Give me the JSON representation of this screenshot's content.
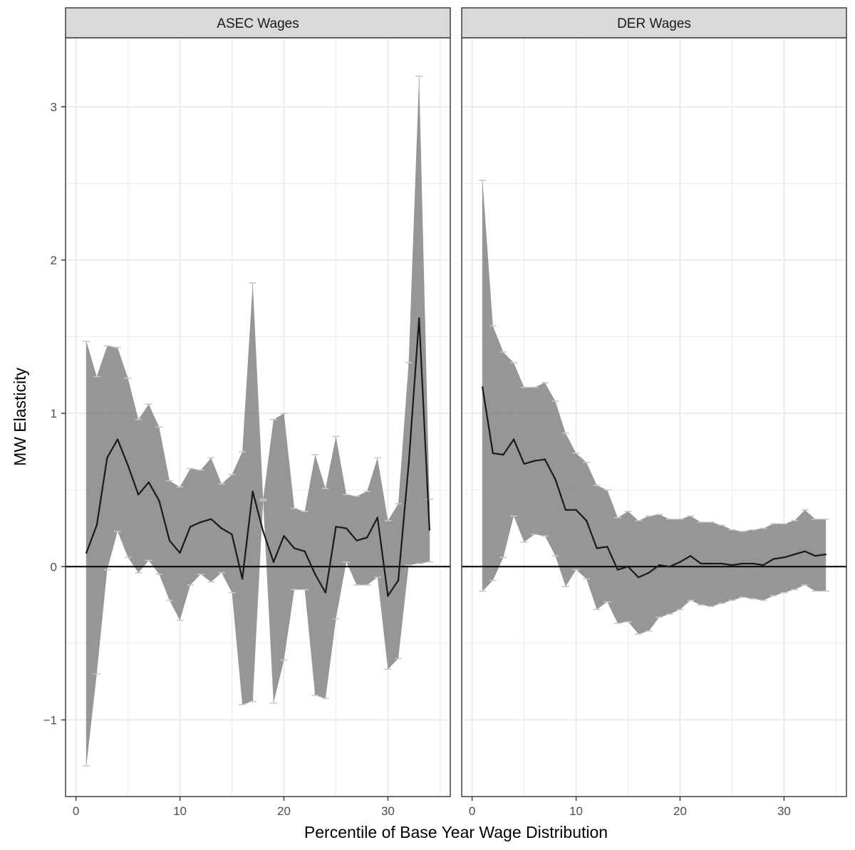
{
  "chart_data": {
    "type": "line",
    "facet_titles": [
      "ASEC Wages",
      "DER Wages"
    ],
    "xlabel": "Percentile of Base Year Wage Distribution",
    "ylabel": "MW Elasticity",
    "xlim": [
      -1,
      36
    ],
    "ylim": [
      -1.5,
      3.45
    ],
    "x_ticks": [
      0,
      10,
      20,
      30
    ],
    "y_ticks": [
      -1,
      0,
      1,
      2,
      3
    ],
    "reference_line": 0,
    "grid": true,
    "colors": {
      "line": "#1a1a1a",
      "band": "#6e6e6e",
      "strip": "#d9d9d9",
      "grid": "#ebebeb",
      "errorbar": "#c8c8c8"
    },
    "panels": [
      {
        "title": "ASEC Wages",
        "x": [
          1,
          2,
          3,
          4,
          5,
          6,
          7,
          8,
          9,
          10,
          11,
          12,
          13,
          14,
          15,
          16,
          17,
          18,
          19,
          20,
          21,
          22,
          23,
          24,
          25,
          26,
          27,
          28,
          29,
          30,
          31,
          32,
          33,
          34
        ],
        "estimate": [
          0.09,
          0.27,
          0.71,
          0.83,
          0.66,
          0.47,
          0.55,
          0.43,
          0.17,
          0.09,
          0.26,
          0.29,
          0.31,
          0.25,
          0.21,
          -0.08,
          0.49,
          0.23,
          0.03,
          0.2,
          0.12,
          0.1,
          -0.05,
          -0.17,
          0.26,
          0.25,
          0.17,
          0.19,
          0.32,
          -0.19,
          -0.09,
          0.67,
          1.62,
          0.24
        ],
        "lower": [
          -1.3,
          -0.7,
          -0.02,
          0.23,
          0.06,
          -0.04,
          0.04,
          -0.05,
          -0.22,
          -0.35,
          -0.12,
          -0.05,
          -0.1,
          -0.04,
          -0.17,
          -0.9,
          -0.88,
          0.43,
          -0.89,
          -0.61,
          -0.15,
          -0.15,
          -0.84,
          -0.86,
          -0.34,
          0.03,
          -0.12,
          -0.12,
          -0.07,
          -0.67,
          -0.6,
          0.01,
          0.02,
          0.03
        ],
        "upper": [
          1.47,
          1.24,
          1.44,
          1.43,
          1.23,
          0.96,
          1.06,
          0.91,
          0.56,
          0.52,
          0.64,
          0.63,
          0.71,
          0.54,
          0.6,
          0.75,
          1.85,
          0.44,
          0.96,
          1.0,
          0.38,
          0.36,
          0.73,
          0.51,
          0.85,
          0.47,
          0.46,
          0.49,
          0.71,
          0.3,
          0.41,
          1.33,
          3.2,
          0.44
        ]
      },
      {
        "title": "DER Wages",
        "x": [
          1,
          2,
          3,
          4,
          5,
          6,
          7,
          8,
          9,
          10,
          11,
          12,
          13,
          14,
          15,
          16,
          17,
          18,
          19,
          20,
          21,
          22,
          23,
          24,
          25,
          26,
          27,
          28,
          29,
          30,
          31,
          32,
          33,
          34
        ],
        "estimate": [
          1.17,
          0.74,
          0.73,
          0.83,
          0.67,
          0.69,
          0.7,
          0.57,
          0.37,
          0.37,
          0.3,
          0.12,
          0.13,
          -0.02,
          0.0,
          -0.07,
          -0.04,
          0.01,
          0.0,
          0.03,
          0.07,
          0.02,
          0.02,
          0.02,
          0.01,
          0.02,
          0.02,
          0.01,
          0.05,
          0.06,
          0.08,
          0.1,
          0.07,
          0.08
        ],
        "lower": [
          -0.16,
          -0.09,
          0.06,
          0.33,
          0.16,
          0.21,
          0.2,
          0.07,
          -0.13,
          -0.02,
          -0.08,
          -0.28,
          -0.23,
          -0.37,
          -0.36,
          -0.44,
          -0.42,
          -0.33,
          -0.31,
          -0.28,
          -0.22,
          -0.25,
          -0.26,
          -0.24,
          -0.22,
          -0.2,
          -0.21,
          -0.22,
          -0.19,
          -0.17,
          -0.15,
          -0.12,
          -0.16,
          -0.16
        ],
        "upper": [
          2.52,
          1.57,
          1.4,
          1.33,
          1.17,
          1.17,
          1.2,
          1.08,
          0.87,
          0.74,
          0.68,
          0.53,
          0.5,
          0.32,
          0.36,
          0.3,
          0.33,
          0.34,
          0.31,
          0.31,
          0.33,
          0.29,
          0.29,
          0.27,
          0.24,
          0.23,
          0.24,
          0.25,
          0.28,
          0.28,
          0.3,
          0.37,
          0.31,
          0.31
        ]
      }
    ]
  }
}
